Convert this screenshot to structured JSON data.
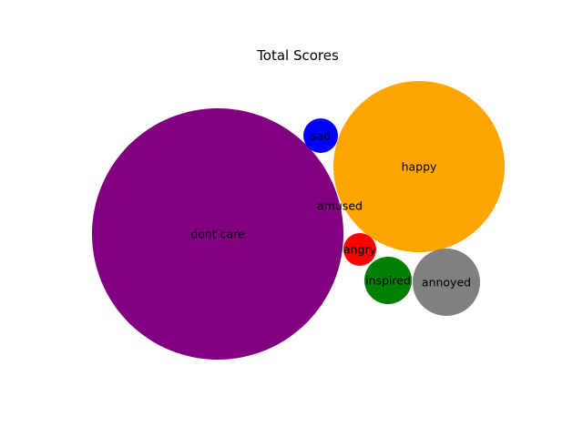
{
  "chart_data": {
    "type": "bubble",
    "title": "Total Scores",
    "items": [
      {
        "label": "dont care",
        "color": "#800080"
      },
      {
        "label": "happy",
        "color": "#FFA500"
      },
      {
        "label": "sad",
        "color": "#0000FF"
      },
      {
        "label": "amused",
        "color": "#FFFFFF"
      },
      {
        "label": "angry",
        "color": "#FF0000"
      },
      {
        "label": "inspired",
        "color": "#008000"
      },
      {
        "label": "annoyed",
        "color": "#808080"
      }
    ]
  }
}
